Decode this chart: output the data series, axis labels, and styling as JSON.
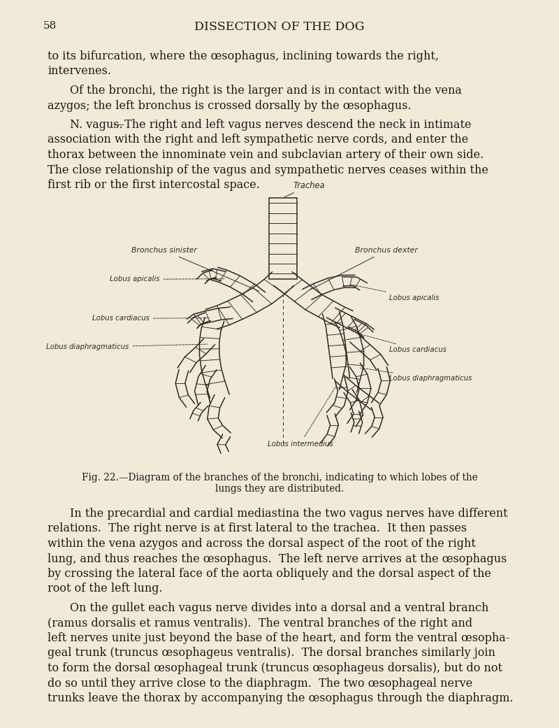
{
  "bg_color": "#f2ead8",
  "text_color": "#1a1a1a",
  "page_number": "58",
  "header": "DISSECTION OF THE DOG",
  "para1_line1": "to its bifurcation, where the œsophagus, inclining towards the right,",
  "para1_line2": "intervenes.",
  "para2_line1": "Of the bronchi, the right is the larger and is in contact with the vena",
  "para2_line2": "azygos; the left bronchus is crossed dorsally by the œsophagus.",
  "para3_prefix": "N. vagus.",
  "para3_lines": [
    "—The right and left vagus nerves descend the neck in intimate",
    "association with the right and left sympathetic nerve cords, and enter the",
    "thorax between the innominate vein and subclavian artery of their own side.",
    "The close relationship of the vagus and sympathetic nerves ceases within the",
    "first rib or the first intercostal space."
  ],
  "fig_caption_line1": "Fig. 22.—Diagram of the branches of the bronchi, indicating to which lobes of the",
  "fig_caption_line2": "lungs they are distributed.",
  "para4_lines": [
    "In the precardial and cardial mediastina the two vagus nerves have different",
    "relations.  The right nerve is at first lateral to the trachea.  It then passes",
    "within the vena azygos and across the dorsal aspect of the root of the right",
    "lung, and thus reaches the œsophagus.  The left nerve arrives at the œsophagus",
    "by crossing the lateral face of the aorta obliquely and the dorsal aspect of the",
    "root of the left lung."
  ],
  "para5_lines": [
    "On the gullet each vagus nerve divides into a dorsal and a ventral branch",
    "(ramus dorsalis et ramus ventralis).  The ventral branches of the right and",
    "left nerves unite just beyond the base of the heart, and form the ventral œsopha-",
    "geal trunk (truncus œsophageus ventralis).  The dorsal branches similarly join",
    "to form the dorsal œsophageal trunk (truncus œsophageus dorsalis), but do not",
    "do so until they arrive close to the diaphragm.  The two œsophageal nerve",
    "trunks leave the thorax by accompanying the œsophagus through the diaphragm."
  ],
  "lbl_trachea": "Trachea",
  "lbl_bronchus_sin": "Bronchus sinister",
  "lbl_bronchus_dex": "Bronchus dexter",
  "lbl_lap_l": "Lobus apicalis",
  "lbl_lca_l": "Lobus cardiacus",
  "lbl_ldi_l": "Lobus diaphragmaticus",
  "lbl_lap_r": "Lobus apicalis",
  "lbl_lca_r": "Lobus cardiacus",
  "lbl_ldi_r": "Lobus diaphragmaticus",
  "lbl_lim": "Lobus intermedius"
}
